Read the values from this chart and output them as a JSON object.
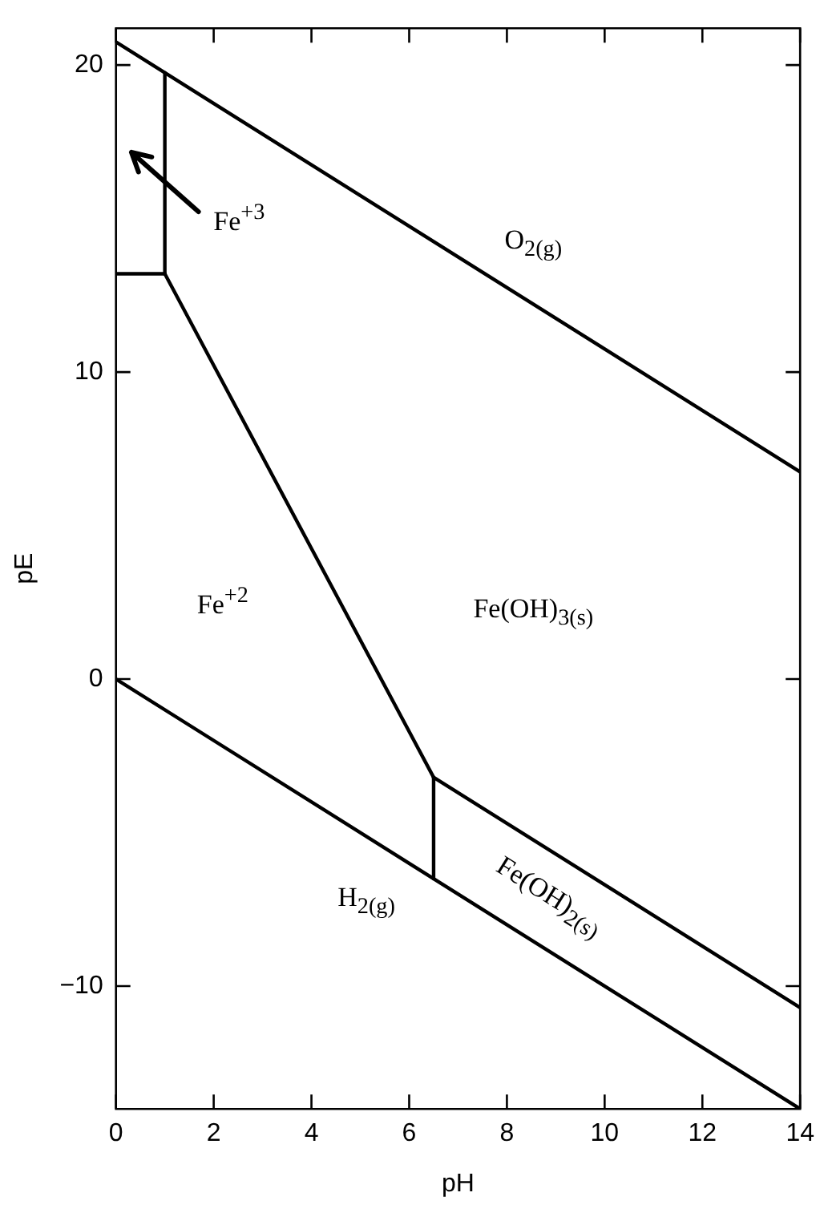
{
  "chart_data": {
    "type": "line",
    "xlabel": "pH",
    "ylabel": "pE",
    "xlim": [
      0,
      14
    ],
    "ylim": [
      -14,
      21.2
    ],
    "xticks": [
      0,
      2,
      4,
      6,
      8,
      10,
      12,
      14
    ],
    "yticks": [
      -10,
      0,
      10,
      20
    ],
    "grid": false,
    "legend": false,
    "marker": "none",
    "line_style": "solid",
    "series": [
      {
        "color": "#000000",
        "x": [
          0,
          14
        ],
        "values": [
          20.75,
          6.75
        ]
      },
      {
        "color": "#000000",
        "x": [
          0,
          14
        ],
        "values": [
          0,
          -14
        ]
      },
      {
        "color": "#000000",
        "x": [
          0,
          1
        ],
        "values": [
          13.2,
          13.2
        ]
      },
      {
        "color": "#000000",
        "x": [
          1,
          1
        ],
        "values": [
          13.2,
          19.75
        ]
      },
      {
        "color": "#000000",
        "x": [
          1,
          6.5
        ],
        "values": [
          13.2,
          -3.2
        ]
      },
      {
        "color": "#000000",
        "x": [
          6.5,
          14
        ],
        "values": [
          -3.2,
          -10.7
        ]
      },
      {
        "color": "#000000",
        "x": [
          6.5,
          6.5
        ],
        "values": [
          -3.2,
          -6.5
        ]
      }
    ],
    "annotations": [
      "O$_{2(g)}$",
      "Fe$^{+3}$",
      "Fe$^{+2}$",
      "Fe(OH)$_{3(s)}$",
      "H$_{2(g)}$",
      "Fe(OH)$_{2(s)}$"
    ]
  }
}
